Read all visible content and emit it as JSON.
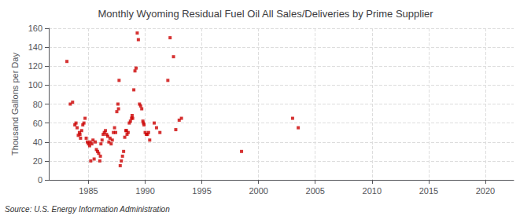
{
  "chart_data": {
    "type": "scatter",
    "title": "Monthly Wyoming Residual Fuel Oil All Sales/Deliveries by Prime Supplier",
    "ylabel": "Thousand Gallons per Day",
    "source": "Source: U.S. Energy Information Administration",
    "color": "#cc0000",
    "marker": "square",
    "grid": true,
    "xlim": [
      1981.5,
      2022.5
    ],
    "ylim": [
      0,
      160
    ],
    "xticks": [
      1985,
      1990,
      1995,
      2000,
      2005,
      2010,
      2015,
      2020
    ],
    "yticks": [
      0,
      20,
      40,
      60,
      80,
      100,
      120,
      140,
      160
    ],
    "x": [
      1983.1,
      1983.4,
      1983.6,
      1983.8,
      1983.9,
      1984.0,
      1984.1,
      1984.2,
      1984.25,
      1984.3,
      1984.4,
      1984.5,
      1984.6,
      1984.7,
      1984.8,
      1984.9,
      1985.0,
      1985.1,
      1985.15,
      1985.2,
      1985.3,
      1985.4,
      1985.5,
      1985.6,
      1985.7,
      1985.8,
      1985.9,
      1986.0,
      1986.05,
      1986.1,
      1986.2,
      1986.3,
      1986.4,
      1986.5,
      1986.6,
      1986.7,
      1986.8,
      1986.9,
      1987.0,
      1987.1,
      1987.2,
      1987.3,
      1987.4,
      1987.5,
      1987.6,
      1987.65,
      1987.7,
      1987.8,
      1987.9,
      1988.0,
      1988.1,
      1988.2,
      1988.3,
      1988.35,
      1988.4,
      1988.5,
      1988.6,
      1988.7,
      1988.8,
      1988.85,
      1988.9,
      1989.0,
      1989.1,
      1989.2,
      1989.3,
      1989.4,
      1989.5,
      1989.6,
      1989.7,
      1989.8,
      1989.85,
      1989.9,
      1990.0,
      1990.1,
      1990.2,
      1990.3,
      1990.4,
      1990.8,
      1991.0,
      1991.3,
      1992.0,
      1992.2,
      1992.5,
      1992.7,
      1993.0,
      1993.2,
      1998.5,
      2003.0,
      2003.5
    ],
    "values": [
      125.0,
      80.0,
      82.0,
      58.0,
      60.0,
      55.0,
      47.0,
      50.0,
      48.0,
      44.0,
      52.0,
      58.0,
      60.0,
      65.0,
      44.0,
      40.0,
      38.0,
      36.0,
      40.0,
      20.0,
      38.0,
      42.0,
      22.0,
      40.0,
      32.0,
      30.0,
      28.0,
      20.0,
      25.0,
      38.0,
      42.0,
      48.0,
      50.0,
      52.0,
      48.0,
      46.0,
      40.0,
      44.0,
      38.0,
      42.0,
      50.0,
      55.0,
      50.0,
      72.0,
      80.0,
      75.0,
      105.0,
      15.0,
      20.0,
      25.0,
      30.0,
      45.0,
      52.0,
      52.0,
      48.0,
      50.0,
      60.0,
      62.0,
      65.0,
      68.0,
      65.0,
      95.0,
      115.0,
      118.0,
      155.0,
      148.0,
      80.0,
      78.0,
      75.0,
      62.0,
      60.0,
      58.0,
      50.0,
      48.0,
      48.0,
      50.0,
      42.0,
      60.0,
      55.0,
      50.0,
      105.0,
      150.0,
      130.0,
      53.0,
      63.0,
      65.0,
      30.0,
      65.0,
      55.0
    ]
  }
}
